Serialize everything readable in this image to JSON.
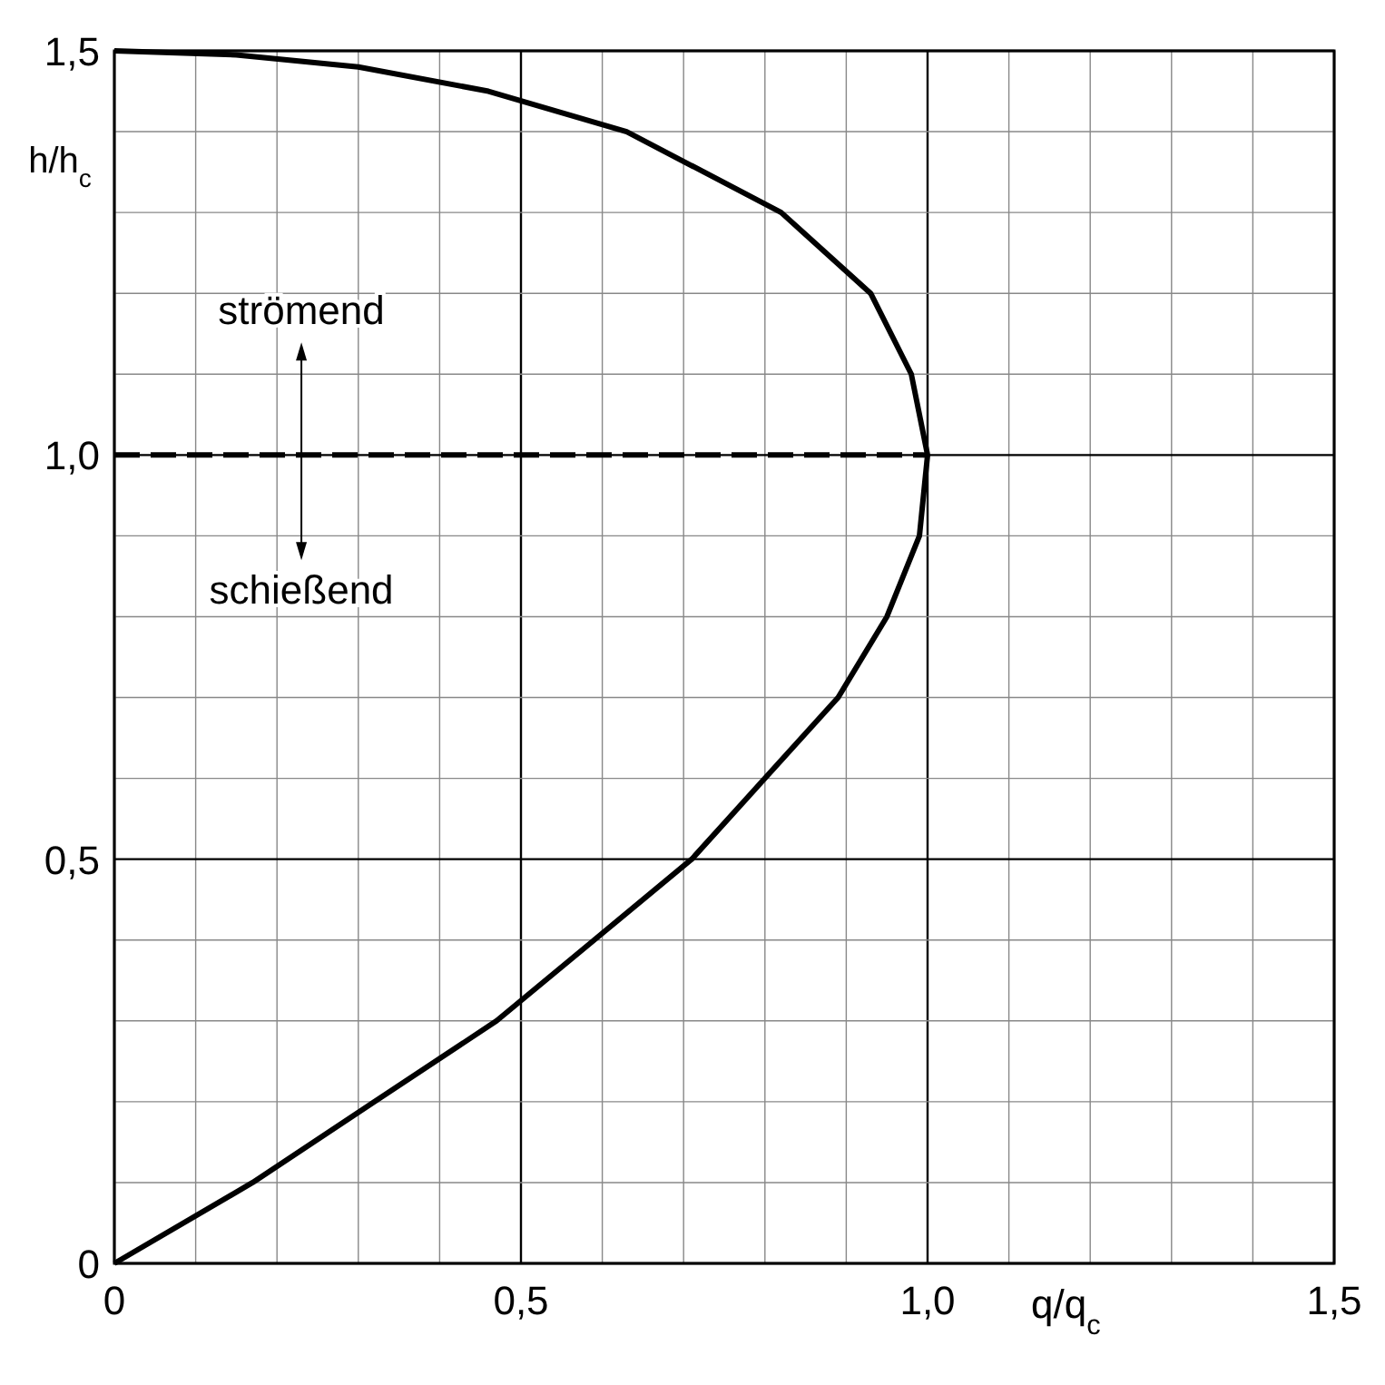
{
  "chart_data": {
    "type": "line",
    "xlabel": "q/q$_{c}$",
    "ylabel": "h/h$_{c}$",
    "xlim": [
      0,
      1.5
    ],
    "ylim": [
      0,
      1.5
    ],
    "xticks": [
      {
        "value": 0,
        "label": "0"
      },
      {
        "value": 0.1,
        "label": null
      },
      {
        "value": 0.2,
        "label": null
      },
      {
        "value": 0.3,
        "label": null
      },
      {
        "value": 0.4,
        "label": null
      },
      {
        "value": 0.5,
        "label": "0,5"
      },
      {
        "value": 0.6,
        "label": null
      },
      {
        "value": 0.7,
        "label": null
      },
      {
        "value": 0.8,
        "label": null
      },
      {
        "value": 0.9,
        "label": null
      },
      {
        "value": 1,
        "label": "1,0"
      },
      {
        "value": 1.1,
        "label": null
      },
      {
        "value": 1.2,
        "label": null
      },
      {
        "value": 1.3,
        "label": null
      },
      {
        "value": 1.4,
        "label": null
      },
      {
        "value": 1.5,
        "label": "1,5"
      }
    ],
    "yticks": [
      {
        "value": 0,
        "label": "0"
      },
      {
        "value": 0.1,
        "label": null
      },
      {
        "value": 0.2,
        "label": null
      },
      {
        "value": 0.3,
        "label": null
      },
      {
        "value": 0.4,
        "label": null
      },
      {
        "value": 0.5,
        "label": "0,5"
      },
      {
        "value": 0.6,
        "label": null
      },
      {
        "value": 0.7,
        "label": null
      },
      {
        "value": 0.8,
        "label": null
      },
      {
        "value": 0.9,
        "label": null
      },
      {
        "value": 1,
        "label": "1,0"
      },
      {
        "value": 1.1,
        "label": null
      },
      {
        "value": 1.2,
        "label": null
      },
      {
        "value": 1.3,
        "label": null
      },
      {
        "value": 1.4,
        "label": null
      },
      {
        "value": 1.5,
        "label": "1,5"
      }
    ],
    "grid": true,
    "series": [
      {
        "color": "#000000",
        "line_style": "solid",
        "x": [
          0,
          0.17,
          0.32,
          0.47,
          0.59,
          0.71,
          0.8,
          0.89,
          0.95,
          0.99,
          1,
          0.98,
          0.93,
          0.82,
          0.63,
          0.46,
          0.3,
          0.15,
          0
        ],
        "values": [
          0,
          0.1,
          0.2,
          0.3,
          0.4,
          0.5,
          0.6,
          0.7,
          0.8,
          0.9,
          1,
          1.1,
          1.2,
          1.3,
          1.4,
          1.45,
          1.48,
          1.495,
          1.5
        ]
      },
      {
        "color": "#000000",
        "line_style": "dashed",
        "x": [
          0,
          1
        ],
        "values": [
          1,
          1
        ]
      }
    ],
    "annotations": [
      {
        "text": "strömend",
        "x": 0.23,
        "y": 1
      },
      {
        "text": "schießend",
        "x": 0.23,
        "y": 1
      }
    ]
  }
}
